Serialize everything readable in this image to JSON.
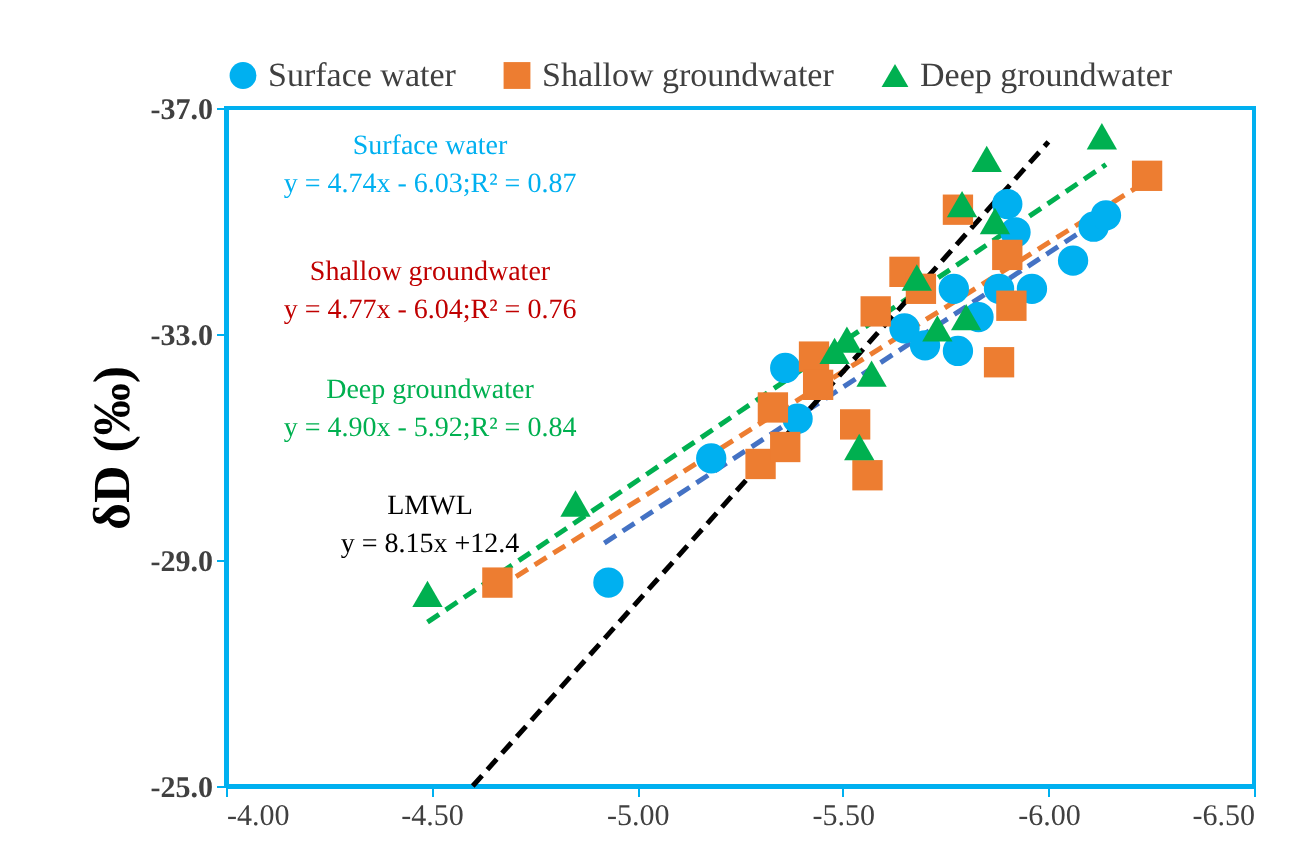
{
  "chart_data": {
    "type": "scatter",
    "ylabel": "δD (‰)",
    "xlim": [
      -4.0,
      -6.5
    ],
    "ylim": [
      -25.0,
      -37.0
    ],
    "xticks": [
      {
        "value": -4.0,
        "label": "-4.00"
      },
      {
        "value": -4.5,
        "label": "-4.50"
      },
      {
        "value": -5.0,
        "label": "-5.00"
      },
      {
        "value": -5.5,
        "label": "-5.50"
      },
      {
        "value": -6.0,
        "label": "-6.00"
      },
      {
        "value": -6.5,
        "label": "-6.50"
      }
    ],
    "yticks": [
      {
        "value": -25.0,
        "label": "-25.0"
      },
      {
        "value": -29.0,
        "label": "-29.0"
      },
      {
        "value": -33.0,
        "label": "-33.0"
      },
      {
        "value": -37.0,
        "label": "-37.0"
      }
    ],
    "grid": false,
    "legend": "top",
    "series": [
      {
        "name": "Surface water",
        "color": "#00b0f0",
        "marker": "circle",
        "x": [
          -4.93,
          -5.18,
          -5.36,
          -5.39,
          -5.65,
          -5.7,
          -5.78,
          -5.77,
          -5.83,
          -5.88,
          -5.9,
          -5.92,
          -5.96,
          -6.06,
          -6.11,
          -6.14
        ],
        "values": [
          -28.6,
          -30.8,
          -32.4,
          -31.5,
          -33.1,
          -32.8,
          -32.7,
          -33.8,
          -33.3,
          -33.8,
          -35.3,
          -34.8,
          -33.8,
          -34.3,
          -34.9,
          -35.1
        ]
      },
      {
        "name": "Shallow groundwater",
        "color": "#ed7d31",
        "marker": "square",
        "x": [
          -4.66,
          -5.3,
          -5.36,
          -5.33,
          -5.43,
          -5.44,
          -5.53,
          -5.56,
          -5.58,
          -5.65,
          -5.69,
          -5.78,
          -5.88,
          -5.91,
          -5.9,
          -6.24
        ],
        "values": [
          -28.6,
          -30.7,
          -31.0,
          -31.7,
          -32.6,
          -32.1,
          -31.4,
          -30.5,
          -33.4,
          -34.1,
          -33.8,
          -35.2,
          -32.5,
          -33.5,
          -34.4,
          -35.8
        ]
      },
      {
        "name": "Deep groundwater",
        "color": "#00b050",
        "marker": "triangle",
        "x": [
          -4.49,
          -4.85,
          -5.48,
          -5.51,
          -5.57,
          -5.54,
          -5.68,
          -5.73,
          -5.8,
          -5.79,
          -5.85,
          -5.87,
          -6.13
        ],
        "values": [
          -28.4,
          -30.0,
          -32.7,
          -32.9,
          -32.3,
          -31.0,
          -34.0,
          -33.1,
          -33.3,
          -35.3,
          -36.1,
          -35.0,
          -36.5
        ]
      },
      {
        "type": "line",
        "color": "#4472c4",
        "line_style": "dashed",
        "x": [
          -4.92,
          -6.14
        ],
        "values": [
          -29.3,
          -35.1
        ]
      },
      {
        "type": "line",
        "color": "#ed7d31",
        "line_style": "dashed",
        "x": [
          -4.66,
          -6.26
        ],
        "values": [
          -28.5,
          -35.8
        ]
      },
      {
        "type": "line",
        "color": "#00b050",
        "line_style": "dashed",
        "x": [
          -4.49,
          -6.14
        ],
        "values": [
          -27.9,
          -36.0
        ]
      },
      {
        "type": "line",
        "color": "#000000",
        "line_style": "dashed",
        "x": [
          -4.6,
          -6.0
        ],
        "values": [
          -25.0,
          -36.4
        ]
      }
    ],
    "annotations": [
      "Surface water\ny = 4.74x - 6.03;R² = 0.87",
      "Shallow groundwater\ny = 4.77x - 6.04;R² = 0.76",
      "Deep groundwater\ny = 4.90x - 5.92;R² = 0.84",
      "LMWL\ny = 8.15x +12.4"
    ]
  }
}
